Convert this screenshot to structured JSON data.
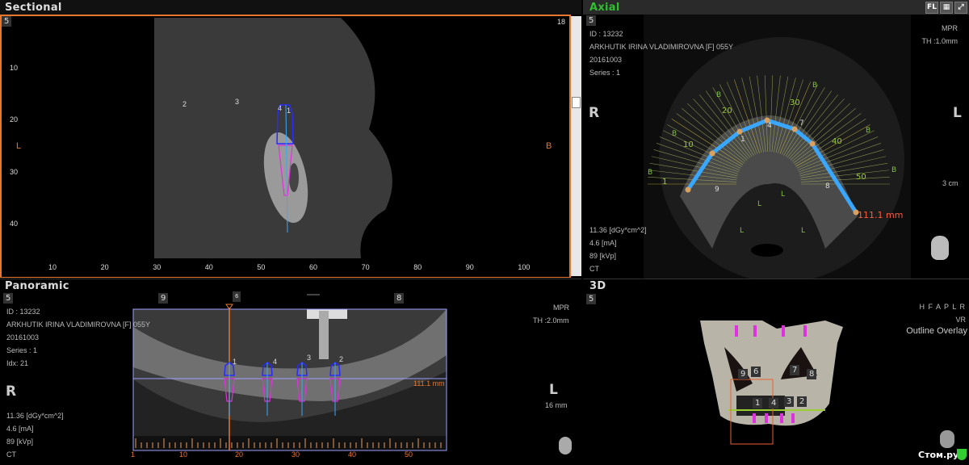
{
  "sectional": {
    "title": "Sectional",
    "slice_badge": "5",
    "slice_count": "18",
    "left_label": "L",
    "right_label": "B",
    "v_ticks": [
      "10",
      "20",
      "30",
      "40"
    ],
    "h_ticks": [
      "10",
      "20",
      "30",
      "40",
      "50",
      "60",
      "70",
      "80",
      "90",
      "100"
    ],
    "markers": [
      "2",
      "3",
      "4",
      "1"
    ]
  },
  "axial": {
    "title": "Axial",
    "slice_badge": "5",
    "toolbar": {
      "fl": "FL",
      "grid_icon": "grid-icon",
      "expand_icon": "expand-icon"
    },
    "patient": {
      "id": "ID : 13232",
      "name": "ARKHUTIK IRINA VLADIMIROVNA  [F] 055Y",
      "date": "20161003",
      "series": "Series : 1"
    },
    "mode": "MPR",
    "thickness": "TH :1.0mm",
    "left_label": "R",
    "right_label": "L",
    "scale": "3 cm",
    "dose": {
      "dose": "11.36  [dGy*cm^2]",
      "ma": "4.6 [mA]",
      "kvp": "89 [kVp]",
      "modality": "CT"
    },
    "curve_length": "111.1 mm",
    "arch_labels": [
      "1",
      "10",
      "20",
      "30",
      "40",
      "50"
    ],
    "implants": [
      "9",
      "1",
      "4",
      "7",
      "8"
    ],
    "side_labels": [
      "B",
      "L"
    ]
  },
  "panoramic": {
    "title": "Panoramic",
    "slice_badge": "5",
    "patient": {
      "id": "ID : 13232",
      "name": "ARKHUTIK IRINA VLADIMIROVNA  [F] 055Y",
      "date": "20161003",
      "series": "Series : 1",
      "idx": "Idx: 21"
    },
    "mode": "MPR",
    "thickness": "TH :2.0mm",
    "left_label": "R",
    "right_label": "L",
    "scale": "16 mm",
    "dose": {
      "dose": "11.36  [dGy*cm^2]",
      "ma": "4.6 [mA]",
      "kvp": "89 [kVp]",
      "modality": "CT"
    },
    "top_badges": [
      "9",
      "6",
      "8"
    ],
    "implants": [
      "1",
      "4",
      "3",
      "2"
    ],
    "curve_length": "111.1 mm",
    "ruler": [
      "1",
      "10",
      "20",
      "30",
      "40",
      "50"
    ]
  },
  "view3d": {
    "title": "3D",
    "slice_badge": "5",
    "orient": "H F A P L R",
    "render": "VR",
    "overlay": "Outline Overlay",
    "upper_implants": [
      "9",
      "6",
      "7",
      "8"
    ],
    "lower_implants": [
      "1",
      "4",
      "3",
      "2"
    ]
  },
  "watermark": "Стом.ру",
  "colors": {
    "accent": "#e8772e",
    "axial_title": "#2fbf2f",
    "implant_crown": "#2a2aff",
    "implant_body": "#e030e0",
    "curve": "#3aa7ff"
  }
}
